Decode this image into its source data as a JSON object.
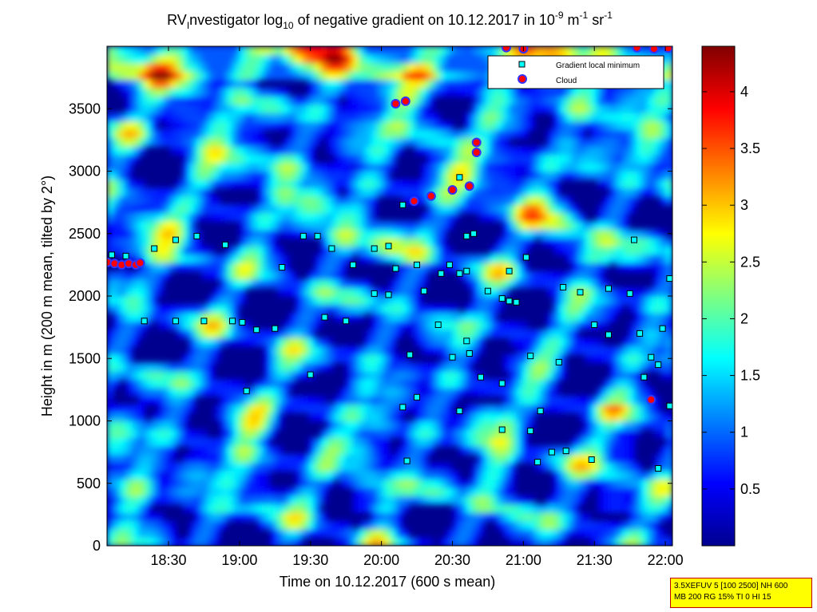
{
  "chart_data": {
    "type": "heatmap",
    "title": {
      "prefix": "RV",
      "sub1": "I",
      "mid": "nvestigator log",
      "sub2": "10",
      "main": " of negative gradient on 10.12.2017 in 10",
      "sup1": "-9",
      "unit1": " m",
      "sup2": "-1",
      "unit2": " sr",
      "sup3": "-1"
    },
    "xlabel": "Time on 10.12.2017 (600 s mean)",
    "ylabel": "Height in m (200 m mean, tilted by 2°)",
    "x_range_hours": [
      18.067,
      22.05
    ],
    "x_ticks": [
      "18:30",
      "19:00",
      "19:30",
      "20:00",
      "20:30",
      "21:00",
      "21:30",
      "22:00"
    ],
    "ylim": [
      0,
      4000
    ],
    "y_ticks": [
      "0",
      "500",
      "1000",
      "1500",
      "2000",
      "2500",
      "3000",
      "3500"
    ],
    "colorbar": {
      "colormap": "jet",
      "range": [
        0,
        4.4
      ],
      "ticks": [
        "0.5",
        "1",
        "1.5",
        "2",
        "2.5",
        "3",
        "3.5",
        "4"
      ]
    },
    "legend": {
      "position": "top-right",
      "entries": [
        {
          "label": "Gradient local minimum",
          "marker": "square",
          "color": "#00ffff"
        },
        {
          "label": "Cloud",
          "marker": "circle",
          "color": "#ff0000"
        }
      ]
    },
    "cloud_points": [
      [
        18.07,
        2270
      ],
      [
        18.12,
        2260
      ],
      [
        18.17,
        2250
      ],
      [
        18.22,
        2260
      ],
      [
        18.27,
        2250
      ],
      [
        18.3,
        2265
      ],
      [
        20.1,
        3540
      ],
      [
        20.17,
        3560
      ],
      [
        20.23,
        2760
      ],
      [
        20.35,
        2800
      ],
      [
        20.5,
        2850
      ],
      [
        20.62,
        2880
      ],
      [
        20.67,
        3230
      ],
      [
        20.67,
        3150
      ],
      [
        20.88,
        3990
      ],
      [
        21.0,
        3980
      ],
      [
        21.8,
        3990
      ],
      [
        21.92,
        3980
      ],
      [
        22.02,
        3985
      ],
      [
        21.9,
        1170
      ]
    ],
    "gradient_min_points": [
      [
        18.1,
        2330
      ],
      [
        18.2,
        2320
      ],
      [
        18.4,
        2380
      ],
      [
        18.55,
        2450
      ],
      [
        18.7,
        2480
      ],
      [
        18.33,
        1800
      ],
      [
        18.55,
        1800
      ],
      [
        18.75,
        1800
      ],
      [
        19.02,
        1790
      ],
      [
        19.12,
        1730
      ],
      [
        19.05,
        1240
      ],
      [
        19.45,
        2480
      ],
      [
        19.55,
        2480
      ],
      [
        19.65,
        2380
      ],
      [
        19.8,
        2250
      ],
      [
        19.95,
        2380
      ],
      [
        20.05,
        2400
      ],
      [
        19.6,
        1830
      ],
      [
        19.75,
        1800
      ],
      [
        19.5,
        1370
      ],
      [
        19.95,
        2020
      ],
      [
        20.05,
        2010
      ],
      [
        20.2,
        1530
      ],
      [
        20.15,
        1110
      ],
      [
        20.25,
        1190
      ],
      [
        20.1,
        2220
      ],
      [
        20.25,
        2250
      ],
      [
        20.42,
        2180
      ],
      [
        20.55,
        2180
      ],
      [
        20.6,
        2200
      ],
      [
        20.3,
        2040
      ],
      [
        20.4,
        1770
      ],
      [
        20.5,
        1510
      ],
      [
        20.6,
        1640
      ],
      [
        20.55,
        1080
      ],
      [
        20.18,
        680
      ],
      [
        20.75,
        2040
      ],
      [
        20.85,
        1980
      ],
      [
        20.9,
        1960
      ],
      [
        20.95,
        1950
      ],
      [
        20.7,
        1350
      ],
      [
        20.85,
        1300
      ],
      [
        20.85,
        930
      ],
      [
        21.05,
        920
      ],
      [
        21.1,
        670
      ],
      [
        21.2,
        750
      ],
      [
        20.9,
        2200
      ],
      [
        21.02,
        2310
      ],
      [
        21.05,
        1520
      ],
      [
        21.25,
        1470
      ],
      [
        21.28,
        2070
      ],
      [
        21.4,
        2030
      ],
      [
        21.5,
        1770
      ],
      [
        21.6,
        1690
      ],
      [
        21.6,
        2060
      ],
      [
        21.75,
        2020
      ],
      [
        21.82,
        1700
      ],
      [
        21.48,
        690
      ],
      [
        21.78,
        2450
      ],
      [
        21.9,
        1510
      ],
      [
        21.95,
        1450
      ],
      [
        21.98,
        1740
      ],
      [
        22.03,
        2140
      ],
      [
        22.03,
        1120
      ],
      [
        21.95,
        620
      ],
      [
        20.55,
        2950
      ],
      [
        20.15,
        2730
      ],
      [
        20.48,
        2250
      ],
      [
        20.62,
        1540
      ],
      [
        21.12,
        1080
      ],
      [
        18.9,
        2410
      ],
      [
        19.3,
        2230
      ],
      [
        20.6,
        2480
      ],
      [
        20.65,
        2500
      ],
      [
        21.3,
        760
      ],
      [
        21.85,
        1350
      ],
      [
        19.25,
        1740
      ],
      [
        18.95,
        1800
      ]
    ]
  },
  "stamp": {
    "line1": "3.5XEFUV 5 [100 2500] NH 600",
    "line2": "MB 200 RG 15% TI 0 HI 15"
  }
}
